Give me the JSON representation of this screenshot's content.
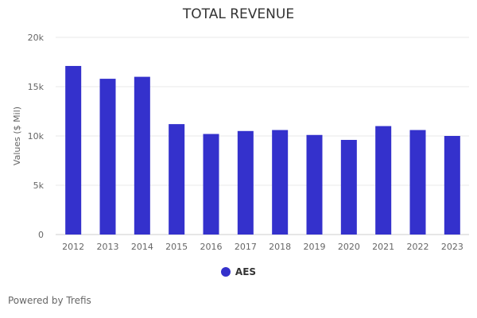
{
  "chart_data": {
    "type": "bar",
    "title": "TOTAL REVENUE",
    "xlabel": "",
    "ylabel": "Values ($ Mil)",
    "ylim": [
      0,
      20000
    ],
    "yticks": [
      0,
      5000,
      10000,
      15000,
      20000
    ],
    "ytick_labels": [
      "0",
      "5k",
      "10k",
      "15k",
      "20k"
    ],
    "categories": [
      "2012",
      "2013",
      "2014",
      "2015",
      "2016",
      "2017",
      "2018",
      "2019",
      "2020",
      "2021",
      "2022",
      "2023"
    ],
    "series": [
      {
        "name": "AES",
        "color": "#3431cc",
        "values": [
          17100,
          15800,
          16000,
          11200,
          10200,
          10500,
          10600,
          10100,
          9600,
          11000,
          10600,
          10000
        ]
      }
    ],
    "grid": true,
    "legend_position": "bottom-center"
  },
  "footer": {
    "credit": "Powered by Trefis"
  }
}
